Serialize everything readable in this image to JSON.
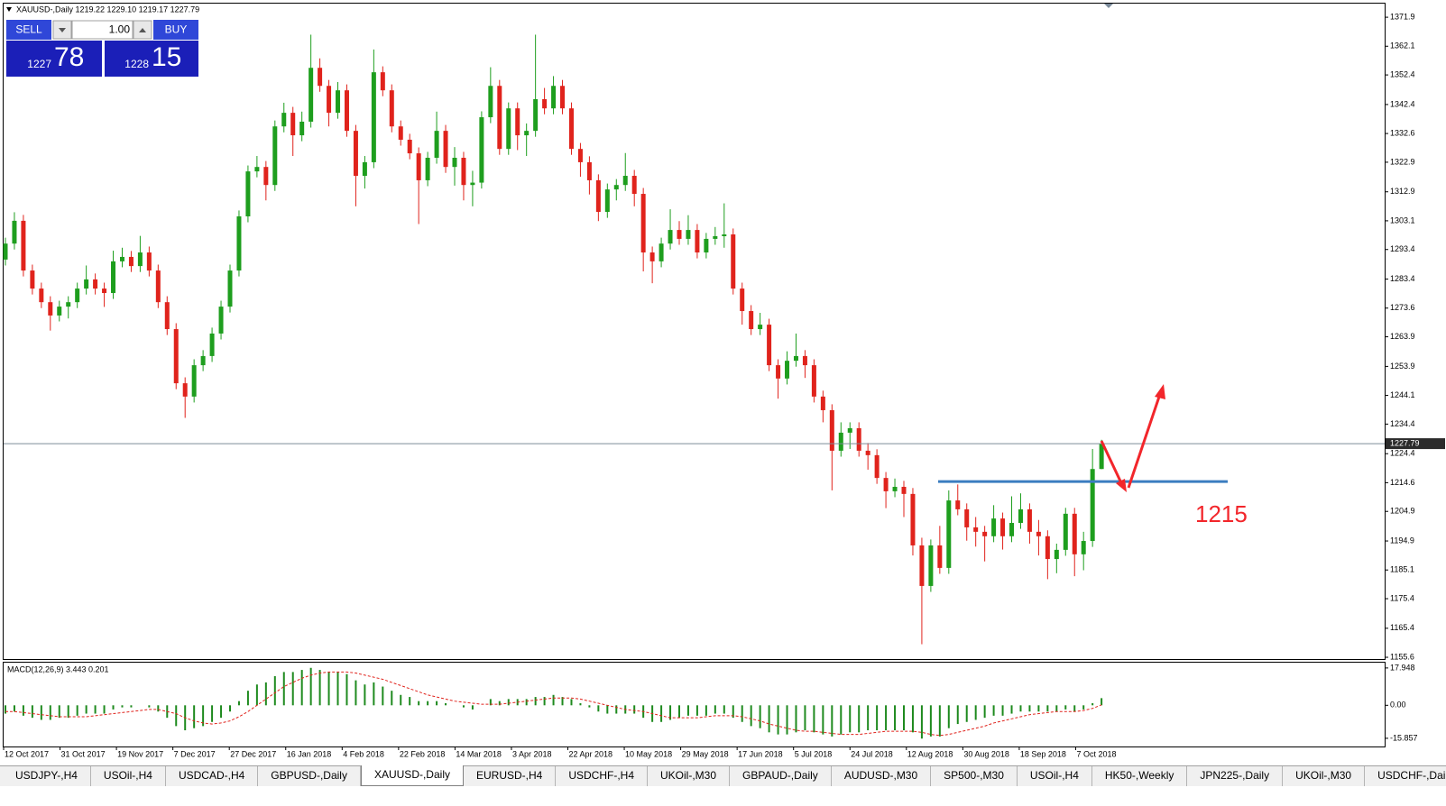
{
  "header": {
    "symbol_line": "XAUUSD-,Daily  1219.22 1229.10 1219.17 1227.79"
  },
  "trade_panel": {
    "sell": "SELL",
    "buy": "BUY",
    "lot": "1.00",
    "bid_big": "1227",
    "bid_small": "78",
    "ask_big": "1228",
    "ask_small": "15"
  },
  "chart_data": [
    {
      "type": "candlestick",
      "x_labels": [
        "12 Oct 2017",
        "31 Oct 2017",
        "19 Nov 2017",
        "7 Dec 2017",
        "27 Dec 2017",
        "16 Jan 2018",
        "4 Feb 2018",
        "22 Feb 2018",
        "14 Mar 2018",
        "3 Apr 2018",
        "22 Apr 2018",
        "10 May 2018",
        "29 May 2018",
        "17 Jun 2018",
        "5 Jul 2018",
        "24 Jul 2018",
        "12 Aug 2018",
        "30 Aug 2018",
        "18 Sep 2018",
        "7 Oct 2018"
      ],
      "open": [
        1290.0,
        1295.4,
        1303.1,
        1286.3,
        1280.2,
        1275.6,
        1271.1,
        1274.1,
        1275.6,
        1280.2,
        1283.3,
        1280.2,
        1278.7,
        1289.4,
        1290.9,
        1287.8,
        1292.4,
        1286.3,
        1275.6,
        1266.5,
        1248.2,
        1243.7,
        1254.3,
        1257.4,
        1265.0,
        1274.1,
        1286.3,
        1304.6,
        1319.8,
        1321.3,
        1315.2,
        1335.0,
        1339.6,
        1332.0,
        1336.6,
        1354.8,
        1348.7,
        1339.6,
        1347.2,
        1333.5,
        1318.3,
        1322.9,
        1353.3,
        1347.2,
        1335.0,
        1330.5,
        1325.9,
        1316.8,
        1324.4,
        1333.5,
        1321.3,
        1324.4,
        1315.2,
        1316.0,
        1338.1,
        1348.7,
        1327.4,
        1341.1,
        1332.0,
        1333.5,
        1344.2,
        1341.1,
        1348.7,
        1341.1,
        1327.4,
        1322.9,
        1316.8,
        1306.1,
        1313.7,
        1315.2,
        1318.3,
        1312.2,
        1292.4,
        1289.4,
        1295.4,
        1300.0,
        1297.0,
        1300.0,
        1292.4,
        1297.0,
        1297.9,
        1298.5,
        1280.2,
        1272.6,
        1266.5,
        1268.0,
        1254.3,
        1249.8,
        1255.8,
        1257.4,
        1254.3,
        1243.7,
        1239.1,
        1225.4,
        1231.5,
        1233.0,
        1225.4,
        1223.9,
        1216.2,
        1211.7,
        1213.2,
        1210.8,
        1193.4,
        1179.7,
        1193.4,
        1185.8,
        1208.6,
        1205.6,
        1199.5,
        1198.0,
        1196.5,
        1202.5,
        1196.5,
        1201.0,
        1205.6,
        1198.0,
        1196.5,
        1188.8,
        1191.9,
        1204.1,
        1190.4,
        1194.9,
        1219.22
      ],
      "high": [
        1297.4,
        1306.0,
        1305.1,
        1288.3,
        1282.2,
        1277.6,
        1276.1,
        1277.6,
        1282.2,
        1288.0,
        1285.3,
        1282.2,
        1293.0,
        1294.0,
        1292.9,
        1298.0,
        1294.4,
        1288.3,
        1277.6,
        1268.5,
        1250.2,
        1256.3,
        1259.4,
        1267.0,
        1276.1,
        1288.3,
        1306.6,
        1321.8,
        1325.0,
        1323.3,
        1337.0,
        1343.0,
        1341.6,
        1340.0,
        1366.0,
        1358.0,
        1350.7,
        1350.0,
        1349.2,
        1335.5,
        1325.0,
        1361.0,
        1355.3,
        1349.2,
        1337.0,
        1332.5,
        1327.9,
        1326.4,
        1340.0,
        1335.5,
        1328.0,
        1326.4,
        1320.0,
        1340.1,
        1355.0,
        1350.7,
        1343.1,
        1343.1,
        1336.0,
        1366.0,
        1348.0,
        1352.0,
        1350.7,
        1343.1,
        1329.4,
        1324.9,
        1318.8,
        1315.7,
        1317.2,
        1326.0,
        1320.3,
        1314.2,
        1294.4,
        1297.4,
        1307.0,
        1303.0,
        1305.0,
        1302.0,
        1299.0,
        1301.0,
        1309.0,
        1300.5,
        1282.2,
        1274.6,
        1272.0,
        1270.0,
        1256.3,
        1259.0,
        1265.0,
        1259.4,
        1256.3,
        1245.7,
        1241.1,
        1235.0,
        1235.0,
        1235.0,
        1228.0,
        1225.9,
        1218.2,
        1216.0,
        1215.2,
        1212.8,
        1196.0,
        1195.4,
        1200.0,
        1212.0,
        1214.0,
        1207.6,
        1203.0,
        1200.0,
        1207.0,
        1204.5,
        1210.0,
        1211.0,
        1207.6,
        1202.0,
        1198.5,
        1194.0,
        1206.1,
        1206.1,
        1198.0,
        1226.0,
        1229.1
      ],
      "low": [
        1288.0,
        1293.4,
        1284.3,
        1278.2,
        1273.6,
        1266.0,
        1269.1,
        1270.1,
        1273.6,
        1278.2,
        1278.2,
        1274.0,
        1276.7,
        1287.4,
        1285.8,
        1285.8,
        1284.3,
        1273.6,
        1264.5,
        1246.2,
        1236.5,
        1241.7,
        1252.3,
        1255.4,
        1263.0,
        1272.1,
        1284.3,
        1302.6,
        1317.8,
        1310.0,
        1313.2,
        1333.0,
        1325.0,
        1330.0,
        1334.6,
        1346.7,
        1335.0,
        1337.6,
        1331.5,
        1308.0,
        1314.0,
        1320.9,
        1345.2,
        1333.0,
        1328.5,
        1323.9,
        1302.0,
        1314.8,
        1322.4,
        1319.3,
        1315.0,
        1310.0,
        1308.0,
        1314.0,
        1336.1,
        1325.4,
        1325.4,
        1327.0,
        1325.0,
        1331.5,
        1339.1,
        1339.1,
        1339.1,
        1325.4,
        1318.0,
        1312.0,
        1303.0,
        1304.1,
        1310.0,
        1313.2,
        1308.0,
        1286.0,
        1282.0,
        1287.4,
        1293.4,
        1295.0,
        1295.0,
        1290.4,
        1290.4,
        1295.0,
        1294.0,
        1278.2,
        1268.0,
        1264.5,
        1264.5,
        1252.3,
        1243.0,
        1247.8,
        1253.8,
        1250.0,
        1241.7,
        1235.0,
        1212.0,
        1223.4,
        1226.0,
        1223.4,
        1219.0,
        1214.2,
        1206.0,
        1209.7,
        1203.0,
        1190.0,
        1160.0,
        1177.7,
        1183.8,
        1183.8,
        1203.6,
        1195.0,
        1193.0,
        1188.0,
        1194.5,
        1192.0,
        1194.5,
        1199.0,
        1194.0,
        1190.0,
        1182.0,
        1184.0,
        1189.9,
        1183.0,
        1185.0,
        1192.9,
        1219.17
      ],
      "close": [
        1295.4,
        1303.1,
        1286.3,
        1280.2,
        1275.6,
        1271.1,
        1274.1,
        1275.6,
        1280.2,
        1283.3,
        1280.2,
        1278.7,
        1289.4,
        1290.9,
        1287.8,
        1292.4,
        1286.3,
        1275.6,
        1266.5,
        1248.2,
        1243.7,
        1254.3,
        1257.4,
        1265.0,
        1274.1,
        1286.3,
        1304.6,
        1319.8,
        1321.3,
        1315.2,
        1335.0,
        1339.6,
        1332.0,
        1336.6,
        1354.8,
        1348.7,
        1339.6,
        1347.2,
        1333.5,
        1318.3,
        1322.9,
        1353.3,
        1347.2,
        1335.0,
        1330.5,
        1325.9,
        1316.8,
        1324.4,
        1333.5,
        1321.3,
        1324.4,
        1315.2,
        1316.0,
        1338.1,
        1348.7,
        1327.4,
        1341.1,
        1332.0,
        1333.5,
        1344.2,
        1341.1,
        1348.7,
        1341.1,
        1327.4,
        1322.9,
        1316.8,
        1306.1,
        1313.7,
        1315.2,
        1318.3,
        1312.2,
        1292.4,
        1289.4,
        1295.4,
        1300.0,
        1297.0,
        1300.0,
        1292.4,
        1297.0,
        1297.9,
        1298.5,
        1280.2,
        1272.6,
        1266.5,
        1268.0,
        1254.3,
        1249.8,
        1255.8,
        1257.4,
        1254.3,
        1243.7,
        1239.1,
        1225.4,
        1231.5,
        1233.0,
        1225.4,
        1223.9,
        1216.2,
        1211.7,
        1213.2,
        1210.8,
        1193.4,
        1179.7,
        1193.4,
        1185.8,
        1208.6,
        1205.6,
        1199.5,
        1198.0,
        1196.5,
        1202.5,
        1196.5,
        1201.0,
        1205.6,
        1198.0,
        1196.5,
        1188.8,
        1191.9,
        1204.1,
        1190.4,
        1194.9,
        1219.22,
        1227.79
      ],
      "up_color": "#1e9e1e",
      "down_color": "#e0231c",
      "ylim": [
        1155.0,
        1376.5
      ],
      "yticks": [
        1371.9,
        1362.1,
        1352.4,
        1342.4,
        1332.6,
        1322.9,
        1312.9,
        1303.1,
        1293.4,
        1283.4,
        1273.6,
        1263.9,
        1253.9,
        1244.1,
        1234.4,
        1224.4,
        1214.6,
        1204.9,
        1194.9,
        1185.1,
        1175.4,
        1165.4,
        1155.6
      ],
      "last_price": 1227.79,
      "level": 1215,
      "level_color": "#3b7dc0",
      "annotation_color": "#f2262b"
    },
    {
      "type": "macd",
      "title": "MACD(12,26,9) 3.443 0.201",
      "histogram": {
        "color": "#1e8a1e",
        "values": [
          -4,
          -3,
          -5,
          -6,
          -7,
          -7,
          -6,
          -6,
          -5,
          -4,
          -4,
          -4,
          -2,
          -1,
          -1,
          0,
          -1,
          -3,
          -6,
          -10,
          -12,
          -11,
          -10,
          -8,
          -6,
          -3,
          2,
          7,
          10,
          11,
          14,
          16,
          16,
          17,
          18,
          17,
          16,
          16,
          15,
          12,
          10,
          11,
          9,
          7,
          5,
          4,
          2,
          2,
          2,
          1,
          0,
          -1,
          -2,
          0,
          3,
          2,
          3,
          3,
          3,
          4,
          4,
          5,
          4,
          3,
          1,
          -1,
          -3,
          -4,
          -4,
          -4,
          -4,
          -6,
          -8,
          -8,
          -7,
          -6,
          -5,
          -5,
          -5,
          -4,
          -4,
          -6,
          -8,
          -10,
          -11,
          -13,
          -14,
          -14,
          -13,
          -12,
          -13,
          -14,
          -15,
          -14,
          -13,
          -13,
          -12,
          -12,
          -12,
          -12,
          -12,
          -13,
          -16,
          -15,
          -15,
          -11,
          -9,
          -8,
          -7,
          -6,
          -5,
          -5,
          -4,
          -3,
          -3,
          -3,
          -3,
          -3,
          -2,
          -3,
          -2,
          1,
          3.443
        ]
      },
      "signal": {
        "color": "#e0231c",
        "values": [
          -3,
          -3,
          -3.5,
          -4,
          -4.5,
          -5,
          -5.5,
          -5.5,
          -5.5,
          -5.5,
          -5,
          -4.5,
          -4,
          -3.5,
          -3,
          -2.5,
          -2,
          -2,
          -3,
          -4,
          -6,
          -7.5,
          -8.5,
          -9,
          -8.5,
          -7.5,
          -5.5,
          -3,
          0,
          3,
          6,
          9,
          11,
          13,
          14.5,
          15.5,
          16,
          16,
          16,
          15.5,
          14.5,
          13.5,
          12.5,
          11,
          9.5,
          8,
          6.5,
          5,
          4,
          3,
          2,
          1.5,
          1,
          0.5,
          0.5,
          0.5,
          1,
          1.5,
          2,
          2.5,
          3,
          3.5,
          3.5,
          3.5,
          3,
          2,
          1,
          0,
          -1,
          -2,
          -2.5,
          -3,
          -4,
          -5,
          -6,
          -6,
          -6,
          -6,
          -5.5,
          -5,
          -5,
          -5,
          -5.5,
          -6.5,
          -7.5,
          -9,
          -10,
          -11,
          -12,
          -12.5,
          -12.5,
          -13,
          -13.5,
          -14,
          -14,
          -14,
          -13.5,
          -13,
          -12.5,
          -12.5,
          -12.5,
          -12.5,
          -13,
          -14,
          -14.5,
          -14,
          -13,
          -12,
          -11,
          -10,
          -8.5,
          -7.5,
          -6.5,
          -5.5,
          -4.5,
          -4,
          -3.5,
          -3,
          -3,
          -3,
          -2.5,
          -1.5,
          0.201
        ]
      },
      "ylim": [
        -19.8,
        20.5
      ],
      "yticks": [
        17.948,
        {
          "value": 0,
          "label": "0.00"
        },
        -15.857
      ]
    }
  ],
  "tabs": [
    "USDJPY-,H4",
    "USOil-,H4",
    "USDCAD-,H4",
    "GBPUSD-,Daily",
    "XAUUSD-,Daily",
    "EURUSD-,H4",
    "USDCHF-,H4",
    "UKOil-,M30",
    "GBPAUD-,Daily",
    "AUDUSD-,M30",
    "SP500-,M30",
    "USOil-,H4",
    "HK50-,Weekly",
    "JPN225-,Daily",
    "UKOil-,M30",
    "USDCHF-,Daily"
  ],
  "active_tab": 4
}
